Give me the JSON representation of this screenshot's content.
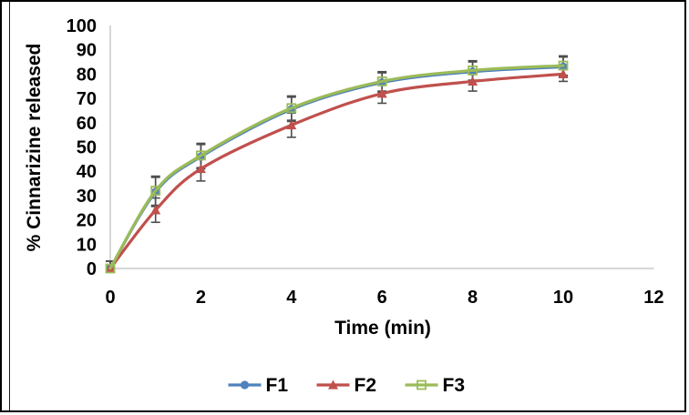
{
  "chart_data": {
    "type": "line",
    "title": "",
    "xlabel": "Time (min)",
    "ylabel": "% Cinnarizine released",
    "x": [
      0,
      1,
      2,
      4,
      6,
      8,
      10
    ],
    "series": [
      {
        "name": "F1",
        "values": [
          0,
          31.5,
          46,
          65.5,
          76.5,
          81,
          83
        ],
        "errors": [
          3,
          6,
          5,
          5,
          4,
          4,
          4
        ],
        "color": "#4F81BD",
        "marker": "circle"
      },
      {
        "name": "F2",
        "values": [
          0,
          24,
          41,
          59,
          72,
          77,
          80
        ],
        "errors": [
          3,
          5,
          5,
          5,
          4,
          4,
          3
        ],
        "color": "#C0504D",
        "marker": "triangle"
      },
      {
        "name": "F3",
        "values": [
          0,
          32,
          46.5,
          66,
          77,
          81.5,
          83.5
        ],
        "errors": [
          3,
          6,
          5,
          5,
          4,
          4,
          4
        ],
        "color": "#9BBB59",
        "marker": "square-open"
      }
    ],
    "xlim": [
      0,
      12
    ],
    "ylim": [
      0,
      100
    ],
    "xticks": [
      0,
      2,
      4,
      6,
      8,
      10,
      12
    ],
    "yticks": [
      0,
      10,
      20,
      30,
      40,
      50,
      60,
      70,
      80,
      90,
      100
    ],
    "grid": false,
    "smooth": true,
    "legend_position": "bottom-center",
    "axis_color": "#BFBFBF",
    "error_bar_color": "#4D4D4D"
  }
}
